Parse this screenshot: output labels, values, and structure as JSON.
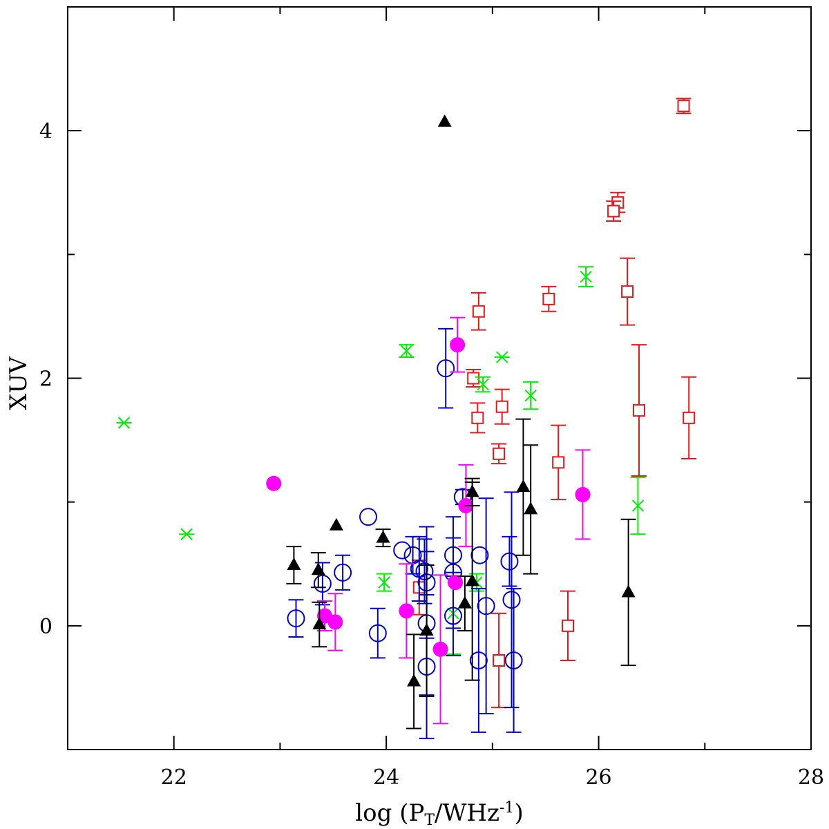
{
  "chart_data": {
    "type": "scatter",
    "xlabel": "log (P_T/WHz^-1)",
    "xlabel_parts": {
      "pre": "log (P",
      "sub": "T",
      "mid": "/WHz",
      "sup": "-1",
      "post": ")"
    },
    "ylabel": "XUV",
    "xlim": [
      21,
      28
    ],
    "ylim": [
      -1,
      5
    ],
    "xticks": [
      {
        "v": 22,
        "label": "22"
      },
      {
        "v": 24,
        "label": "24"
      },
      {
        "v": 26,
        "label": "26"
      },
      {
        "v": 28,
        "label": "28"
      }
    ],
    "yticks": [
      {
        "v": 0,
        "label": "0"
      },
      {
        "v": 2,
        "label": "2"
      },
      {
        "v": 4,
        "label": "4"
      }
    ],
    "grid": false,
    "series": [
      {
        "marker": "open-square",
        "color": "#e31a1c",
        "points": [
          {
            "x": 26.8,
            "y": 4.2,
            "err": 0.06
          },
          {
            "x": 26.18,
            "y": 3.42,
            "err": 0.08
          },
          {
            "x": 26.14,
            "y": 3.35,
            "err": 0.08
          },
          {
            "x": 26.27,
            "y": 2.7,
            "err": 0.27
          },
          {
            "x": 25.53,
            "y": 2.64,
            "err": 0.1
          },
          {
            "x": 24.87,
            "y": 2.54,
            "err": 0.15
          },
          {
            "x": 24.82,
            "y": 2.0,
            "err": 0.07
          },
          {
            "x": 25.09,
            "y": 1.77,
            "err": 0.14
          },
          {
            "x": 24.86,
            "y": 1.68,
            "err": 0.12
          },
          {
            "x": 26.38,
            "y": 1.74,
            "err": 0.53
          },
          {
            "x": 26.85,
            "y": 1.68,
            "err": 0.33
          },
          {
            "x": 25.06,
            "y": 1.39,
            "err": 0.08
          },
          {
            "x": 25.62,
            "y": 1.32,
            "err": 0.3
          },
          {
            "x": 24.31,
            "y": 0.31,
            "err": 0.22
          },
          {
            "x": 25.71,
            "y": 0.0,
            "err": 0.28
          },
          {
            "x": 25.06,
            "y": -0.28,
            "err": 0.38
          }
        ]
      },
      {
        "marker": "cross",
        "color": "#00ee00",
        "points": [
          {
            "x": 21.53,
            "y": 1.64,
            "err": 0.0
          },
          {
            "x": 22.12,
            "y": 0.74,
            "err": 0.0
          },
          {
            "x": 24.19,
            "y": 2.22,
            "err": 0.05
          },
          {
            "x": 25.09,
            "y": 2.17,
            "err": 0.0
          },
          {
            "x": 24.91,
            "y": 1.95,
            "err": 0.06
          },
          {
            "x": 25.36,
            "y": 1.86,
            "err": 0.11
          },
          {
            "x": 25.88,
            "y": 2.82,
            "err": 0.08
          },
          {
            "x": 26.37,
            "y": 0.97,
            "err": 0.23
          },
          {
            "x": 23.98,
            "y": 0.35,
            "err": 0.07
          },
          {
            "x": 24.63,
            "y": 0.1,
            "err": 0.33
          },
          {
            "x": 24.85,
            "y": 0.35,
            "err": 0.07
          }
        ]
      },
      {
        "marker": "open-circle",
        "color": "#0000cc",
        "points": [
          {
            "x": 23.83,
            "y": 0.88,
            "err": 0.0
          },
          {
            "x": 24.56,
            "y": 2.08,
            "err": 0.32
          },
          {
            "x": 24.72,
            "y": 1.04,
            "err": 0.06
          },
          {
            "x": 24.15,
            "y": 0.61,
            "err": 0.0
          },
          {
            "x": 24.25,
            "y": 0.57,
            "err": 0.15
          },
          {
            "x": 24.31,
            "y": 0.46,
            "err": 0.26
          },
          {
            "x": 24.36,
            "y": 0.44,
            "err": 0.26
          },
          {
            "x": 24.63,
            "y": 0.57,
            "err": 0.14
          },
          {
            "x": 24.63,
            "y": 0.43,
            "err": 0.45
          },
          {
            "x": 24.88,
            "y": 0.57,
            "err": 0.0
          },
          {
            "x": 25.16,
            "y": 0.52,
            "err": 0.2
          },
          {
            "x": 23.59,
            "y": 0.43,
            "err": 0.14
          },
          {
            "x": 23.4,
            "y": 0.34,
            "err": 0.17
          },
          {
            "x": 24.38,
            "y": 0.35,
            "err": 0.45
          },
          {
            "x": 23.15,
            "y": 0.06,
            "err": 0.15
          },
          {
            "x": 23.92,
            "y": -0.06,
            "err": 0.2
          },
          {
            "x": 24.38,
            "y": 0.02,
            "err": 0.58
          },
          {
            "x": 24.63,
            "y": 0.08,
            "err": 0.32
          },
          {
            "x": 24.94,
            "y": 0.16,
            "err": 0.87
          },
          {
            "x": 25.18,
            "y": 0.21,
            "err": 0.87
          },
          {
            "x": 24.38,
            "y": -0.33,
            "err": 0.58
          },
          {
            "x": 24.87,
            "y": -0.28,
            "err": 0.58
          },
          {
            "x": 25.2,
            "y": -0.28,
            "err": 0.58
          }
        ]
      },
      {
        "marker": "filled-circle",
        "color": "#ff00ff",
        "points": [
          {
            "x": 22.94,
            "y": 1.15,
            "err": 0.0
          },
          {
            "x": 24.67,
            "y": 2.27,
            "err": 0.22
          },
          {
            "x": 25.85,
            "y": 1.06,
            "err": 0.36
          },
          {
            "x": 24.75,
            "y": 0.97,
            "err": 0.33
          },
          {
            "x": 24.65,
            "y": 0.35,
            "err": 0.0
          },
          {
            "x": 23.42,
            "y": 0.08,
            "err": 0.12
          },
          {
            "x": 23.52,
            "y": 0.03,
            "err": 0.23
          },
          {
            "x": 24.19,
            "y": 0.12,
            "err": 0.38
          },
          {
            "x": 24.51,
            "y": -0.19,
            "err": 0.6
          }
        ]
      },
      {
        "marker": "filled-triangle",
        "color": "#000000",
        "points": [
          {
            "x": 24.55,
            "y": 4.07,
            "err": 0.0
          },
          {
            "x": 23.53,
            "y": 0.81,
            "err": 0.0
          },
          {
            "x": 23.97,
            "y": 0.71,
            "err": 0.07
          },
          {
            "x": 24.81,
            "y": 1.08,
            "err": 0.11
          },
          {
            "x": 25.29,
            "y": 1.12,
            "err": 0.55
          },
          {
            "x": 25.36,
            "y": 0.94,
            "err": 0.52
          },
          {
            "x": 23.13,
            "y": 0.49,
            "err": 0.15
          },
          {
            "x": 23.36,
            "y": 0.45,
            "err": 0.14
          },
          {
            "x": 24.81,
            "y": 0.36,
            "err": 0.8
          },
          {
            "x": 24.74,
            "y": 0.18,
            "err": 0.22
          },
          {
            "x": 23.37,
            "y": 0.01,
            "err": 0.18
          },
          {
            "x": 26.28,
            "y": 0.27,
            "err": 0.59
          },
          {
            "x": 24.38,
            "y": -0.04,
            "err": 0.53
          },
          {
            "x": 24.26,
            "y": -0.45,
            "err": 0.38
          }
        ]
      }
    ]
  }
}
